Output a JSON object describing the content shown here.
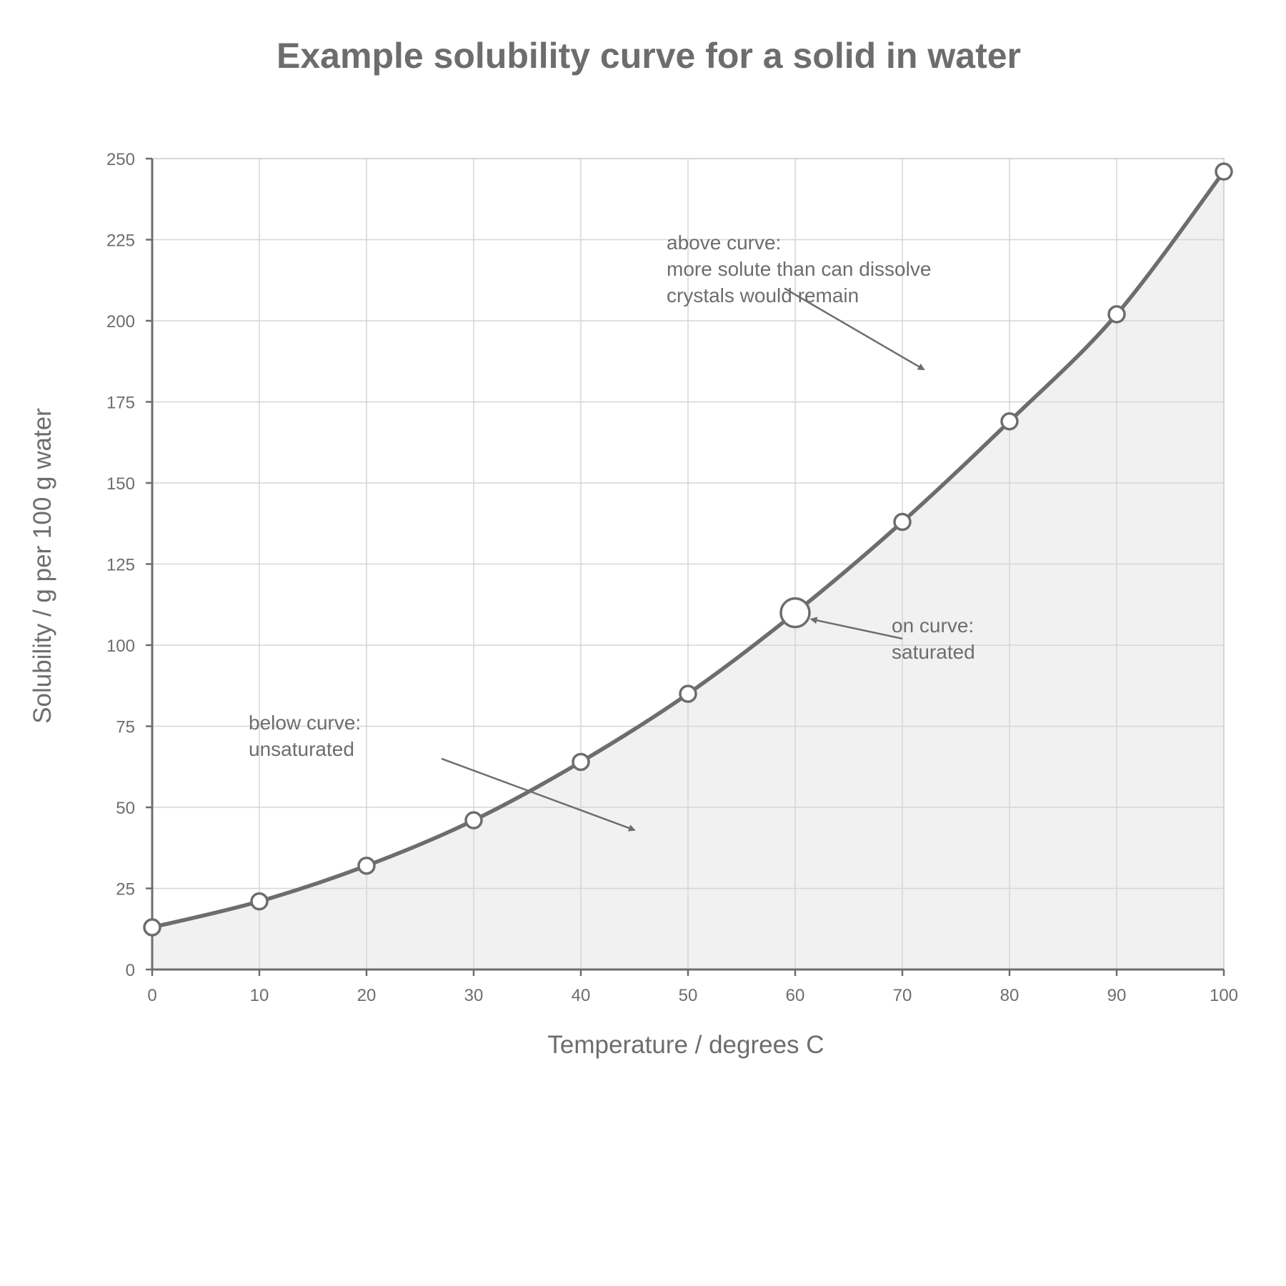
{
  "chart_data": {
    "type": "area",
    "title": "Example solubility curve for a solid in water",
    "xlabel": "Temperature / degrees C",
    "ylabel": "Solubility / g per 100 g water",
    "xlim": [
      0,
      100
    ],
    "ylim": [
      0,
      250
    ],
    "x_ticks": [
      "0",
      "10",
      "20",
      "30",
      "40",
      "50",
      "60",
      "70",
      "80",
      "90",
      "100"
    ],
    "y_ticks": [
      "0",
      "25",
      "50",
      "75",
      "100",
      "125",
      "150",
      "175",
      "200",
      "225",
      "250"
    ],
    "grid": true,
    "legend": "none",
    "x": [
      0,
      10,
      20,
      30,
      40,
      50,
      60,
      70,
      80,
      90,
      100
    ],
    "series": [
      {
        "values": [
          13,
          21,
          32,
          46,
          64,
          85,
          110,
          138,
          169,
          202,
          246
        ]
      }
    ],
    "highlighted_point": {
      "x": 60,
      "y": 110
    },
    "annotations": [
      {
        "id": "above",
        "lines": [
          "above curve:",
          "more solute than can dissolve",
          "crystals would remain"
        ],
        "text_at": {
          "x": 48,
          "y": 222
        },
        "arrow_from": {
          "x": 59,
          "y": 210
        },
        "arrow_to": {
          "x": 72,
          "y": 185
        }
      },
      {
        "id": "on",
        "lines": [
          "on curve:",
          "saturated"
        ],
        "text_at": {
          "x": 69,
          "y": 104
        },
        "arrow_from": {
          "x": 70,
          "y": 102
        },
        "arrow_to": {
          "x": 61.5,
          "y": 108
        }
      },
      {
        "id": "below",
        "lines": [
          "below curve:",
          "unsaturated"
        ],
        "text_at": {
          "x": 9,
          "y": 74
        },
        "arrow_from": {
          "x": 27,
          "y": 65
        },
        "arrow_to": {
          "x": 45,
          "y": 43
        }
      }
    ],
    "colors": {
      "line": "#6d6d70",
      "fill": "#f1f1f1",
      "grid": "#d6d6d6",
      "marker_fill": "#ffffff",
      "text": "#6d6d70"
    }
  }
}
